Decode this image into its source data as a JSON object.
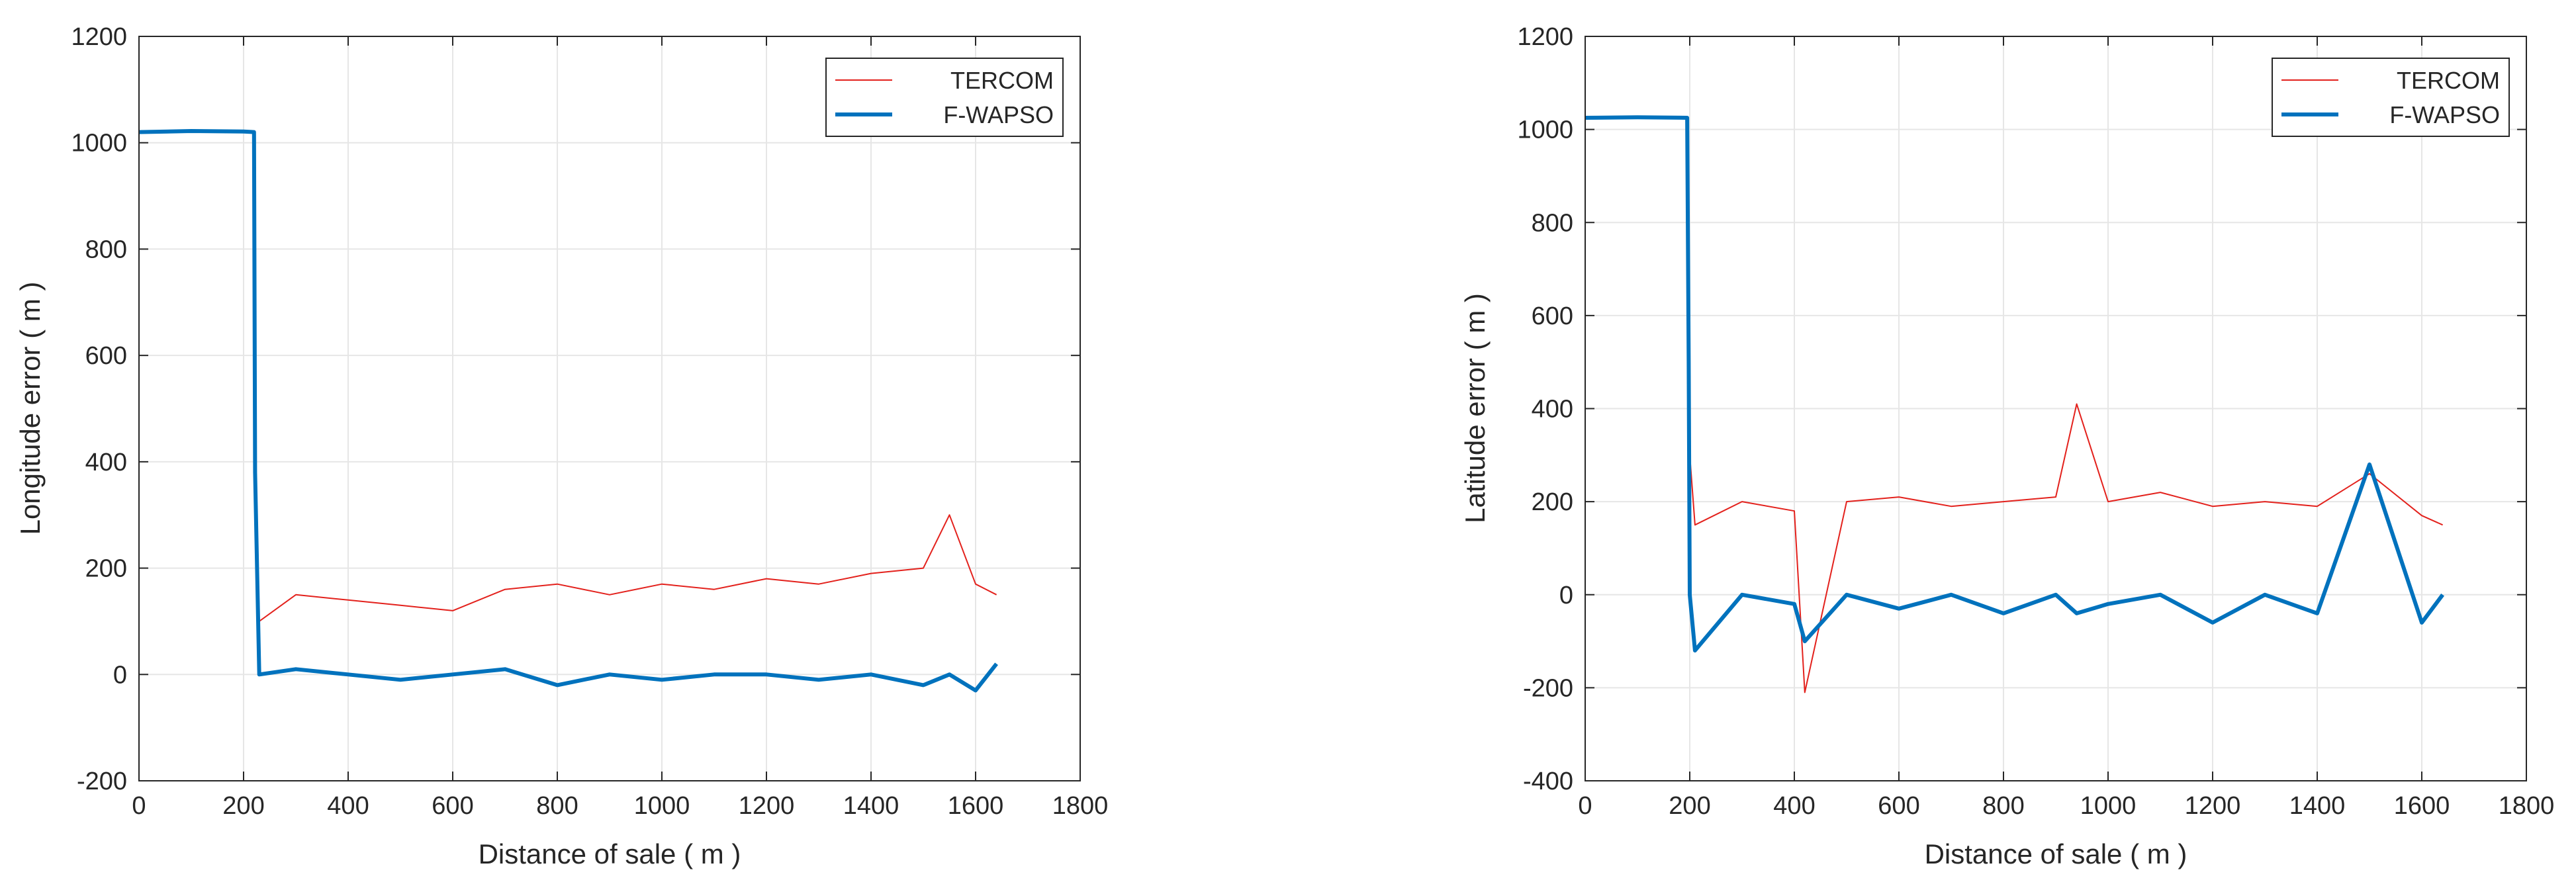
{
  "chart_data": [
    {
      "type": "line",
      "title": "",
      "xlabel": "Distance of sale ( m )",
      "ylabel": "Longitude error ( m )",
      "xlim": [
        0,
        1800
      ],
      "ylim": [
        -200,
        1200
      ],
      "xticks": [
        0,
        200,
        400,
        600,
        800,
        1000,
        1200,
        1400,
        1600,
        1800
      ],
      "yticks": [
        -200,
        0,
        200,
        400,
        600,
        800,
        1000,
        1200
      ],
      "xtick_labels": [
        "0",
        "200",
        "400",
        "600",
        "800",
        "1000",
        "1200",
        "1400",
        "1600",
        "1800"
      ],
      "ytick_labels": [
        "-200",
        "0",
        "200",
        "400",
        "600",
        "800",
        "1000",
        "1200"
      ],
      "grid": true,
      "legend_position": "top-right",
      "x": [
        0,
        100,
        200,
        220,
        222,
        230,
        300,
        400,
        500,
        600,
        700,
        800,
        900,
        1000,
        1100,
        1200,
        1300,
        1400,
        1500,
        1550,
        1600,
        1640
      ],
      "series": [
        {
          "name": "TERCOM",
          "color": "#e3211c",
          "values": [
            1020,
            1022,
            1021,
            1020,
            450,
            100,
            150,
            140,
            130,
            120,
            160,
            170,
            150,
            170,
            160,
            180,
            170,
            190,
            200,
            300,
            170,
            150
          ]
        },
        {
          "name": "F-WAPSO",
          "color": "#0072bd",
          "values": [
            1020,
            1022,
            1021,
            1020,
            380,
            0,
            10,
            0,
            -10,
            0,
            10,
            -20,
            0,
            -10,
            0,
            0,
            -10,
            0,
            -20,
            0,
            -30,
            20
          ]
        }
      ]
    },
    {
      "type": "line",
      "title": "",
      "xlabel": "Distance of sale ( m )",
      "ylabel": "Latitude error ( m )",
      "xlim": [
        0,
        1800
      ],
      "ylim": [
        -400,
        1200
      ],
      "xticks": [
        0,
        200,
        400,
        600,
        800,
        1000,
        1200,
        1400,
        1600,
        1800
      ],
      "yticks": [
        -400,
        -200,
        0,
        200,
        400,
        600,
        800,
        1000,
        1200
      ],
      "xtick_labels": [
        "0",
        "200",
        "400",
        "600",
        "800",
        "1000",
        "1200",
        "1400",
        "1600",
        "1800"
      ],
      "ytick_labels": [
        "-400",
        "-200",
        "0",
        "200",
        "400",
        "600",
        "800",
        "1000",
        "1200"
      ],
      "grid": true,
      "legend_position": "top-right",
      "x": [
        0,
        100,
        195,
        198,
        200,
        210,
        300,
        400,
        420,
        500,
        600,
        700,
        800,
        900,
        940,
        1000,
        1100,
        1200,
        1300,
        1400,
        1500,
        1600,
        1640
      ],
      "series": [
        {
          "name": "TERCOM",
          "color": "#e3211c",
          "values": [
            1025,
            1026,
            1025,
            600,
            300,
            150,
            200,
            180,
            -210,
            200,
            210,
            190,
            200,
            210,
            410,
            200,
            220,
            190,
            200,
            190,
            260,
            170,
            150
          ]
        },
        {
          "name": "F-WAPSO",
          "color": "#0072bd",
          "values": [
            1025,
            1026,
            1025,
            500,
            0,
            -120,
            0,
            -20,
            -100,
            0,
            -30,
            0,
            -40,
            0,
            -40,
            -20,
            0,
            -60,
            0,
            -40,
            280,
            -60,
            0
          ]
        }
      ]
    }
  ]
}
